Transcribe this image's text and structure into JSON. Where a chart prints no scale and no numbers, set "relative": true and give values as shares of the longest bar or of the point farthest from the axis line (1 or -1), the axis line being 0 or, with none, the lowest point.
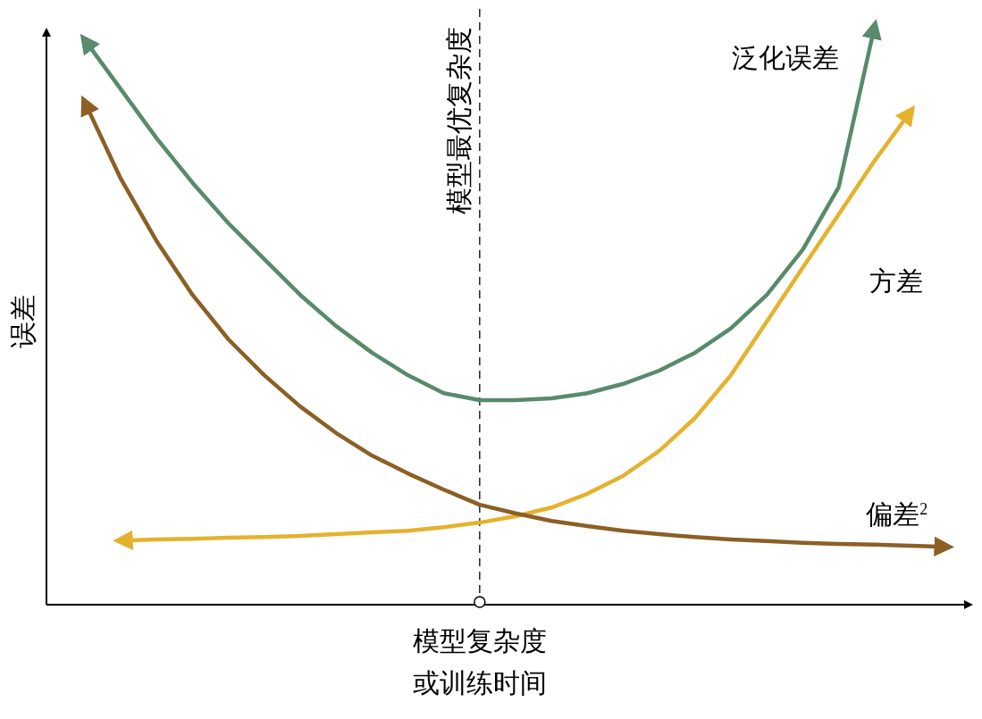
{
  "chart_data": {
    "type": "line",
    "relative": true,
    "xlabel": "模型复杂度或训练时间",
    "ylabel": "误差",
    "categories": [
      null,
      null,
      null,
      null,
      null,
      null,
      null,
      null,
      null,
      null,
      null,
      null,
      null,
      null,
      null,
      null,
      null,
      null,
      null,
      null,
      null,
      null,
      null,
      null,
      null
    ],
    "series": [
      {
        "name": "泛化误差",
        "color": "#588a6c",
        "values": [
          0.977,
          0.892,
          0.807,
          0.73,
          0.66,
          0.598,
          0.536,
          0.482,
          0.436,
          0.397,
          0.366,
          0.354,
          0.354,
          0.357,
          0.366,
          0.382,
          0.405,
          0.436,
          0.478,
          0.536,
          0.614,
          0.722,
          1.0,
          null,
          null
        ]
      },
      {
        "name": "方差",
        "color": "#e5b22e",
        "values": [
          null,
          0.111,
          0.113,
          0.114,
          0.116,
          0.117,
          0.119,
          0.122,
          0.125,
          0.128,
          0.134,
          0.142,
          0.153,
          0.168,
          0.192,
          0.223,
          0.266,
          0.323,
          0.397,
          0.49,
          0.583,
          0.675,
          0.768,
          0.853,
          null
        ]
      },
      {
        "name": "偏差$^{2}$",
        "color": "#8c5f25",
        "values": [
          0.869,
          0.737,
          0.629,
          0.536,
          0.459,
          0.397,
          0.343,
          0.297,
          0.258,
          0.227,
          0.199,
          0.173,
          0.158,
          0.145,
          0.136,
          0.128,
          0.122,
          0.117,
          0.113,
          0.11,
          0.107,
          0.105,
          0.104,
          0.102,
          0.1
        ]
      }
    ],
    "annotations": [
      "模型最优复杂度"
    ],
    "marker": "none",
    "line_style": "solid",
    "grid": false
  }
}
